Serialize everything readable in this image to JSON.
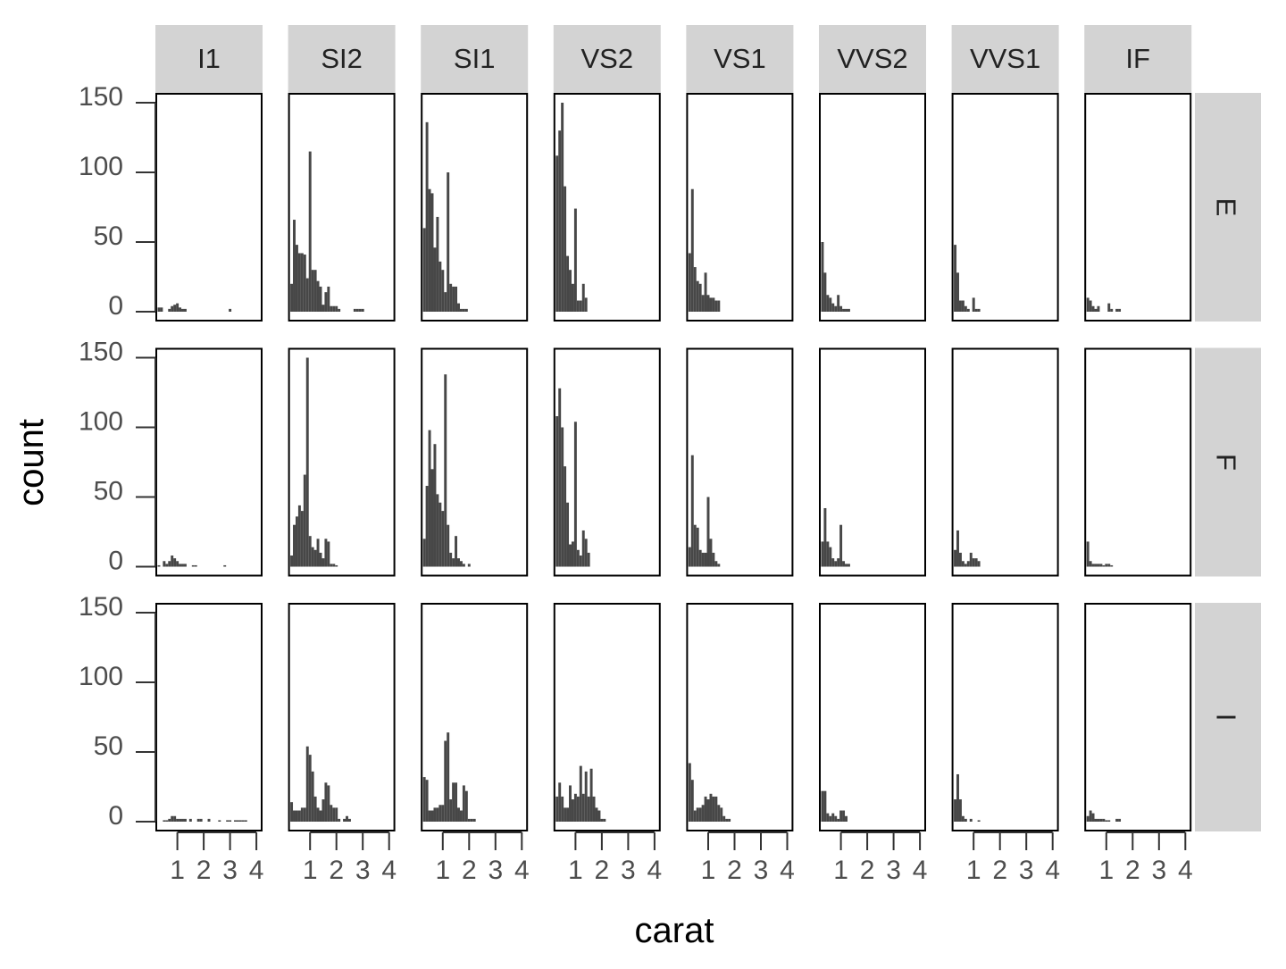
{
  "chart_data": {
    "type": "bar",
    "kind": "faceted-histogram",
    "xlabel": "carat",
    "ylabel": "count",
    "ylim": [
      0,
      150
    ],
    "y_ticks": [
      0,
      50,
      100,
      150
    ],
    "x_range": [
      0.2,
      4.2
    ],
    "x_ticks": [
      1,
      2,
      3,
      4
    ],
    "bin_width": 0.1,
    "grid": false,
    "bar_color": "#474747",
    "strip_color": "#d3d3d3",
    "columns": [
      "I1",
      "SI2",
      "SI1",
      "VS2",
      "VS1",
      "VVS2",
      "VVS1",
      "IF"
    ],
    "rows": [
      "E",
      "F",
      "I"
    ],
    "panels": [
      {
        "row": "E",
        "col": "I1",
        "x0": 0.25,
        "counts": [
          3,
          3,
          0,
          0,
          2,
          4,
          5,
          6,
          3,
          2,
          2,
          0,
          0,
          0,
          0,
          0,
          0,
          0,
          0,
          0,
          0,
          0,
          0,
          0,
          0,
          0,
          0,
          2
        ]
      },
      {
        "row": "E",
        "col": "SI2",
        "x0": 0.25,
        "counts": [
          20,
          66,
          48,
          42,
          42,
          41,
          24,
          115,
          30,
          30,
          22,
          18,
          5,
          14,
          18,
          4,
          4,
          4,
          2,
          0,
          0,
          0,
          0,
          0,
          2,
          2,
          2,
          2
        ]
      },
      {
        "row": "E",
        "col": "SI1",
        "x0": 0.25,
        "counts": [
          60,
          136,
          88,
          85,
          46,
          68,
          36,
          30,
          14,
          100,
          20,
          18,
          18,
          6,
          2,
          2,
          2
        ]
      },
      {
        "row": "E",
        "col": "VS2",
        "x0": 0.25,
        "counts": [
          112,
          130,
          150,
          90,
          40,
          30,
          20,
          74,
          8,
          8,
          20,
          10
        ]
      },
      {
        "row": "E",
        "col": "VS1",
        "x0": 0.25,
        "counts": [
          42,
          88,
          32,
          22,
          20,
          12,
          28,
          12,
          10,
          10,
          8,
          8
        ]
      },
      {
        "row": "E",
        "col": "VVS2",
        "x0": 0.25,
        "counts": [
          50,
          28,
          12,
          10,
          6,
          4,
          12,
          4,
          2,
          2,
          2
        ]
      },
      {
        "row": "E",
        "col": "VVS1",
        "x0": 0.25,
        "counts": [
          48,
          28,
          8,
          8,
          4,
          2,
          0,
          10,
          2,
          2
        ]
      },
      {
        "row": "E",
        "col": "IF",
        "x0": 0.25,
        "counts": [
          10,
          8,
          4,
          2,
          4,
          0,
          0,
          0,
          6,
          2,
          0,
          2,
          2
        ]
      },
      {
        "row": "F",
        "col": "I1",
        "x0": 0.25,
        "counts": [
          1,
          0,
          4,
          2,
          4,
          8,
          6,
          4,
          2,
          2,
          2,
          0,
          0,
          1,
          1,
          0,
          0,
          0,
          0,
          0,
          0,
          0,
          0,
          0,
          0,
          1
        ]
      },
      {
        "row": "F",
        "col": "SI2",
        "x0": 0.25,
        "counts": [
          8,
          30,
          36,
          44,
          40,
          66,
          150,
          22,
          14,
          12,
          20,
          10,
          6,
          20,
          18,
          2,
          2,
          1
        ]
      },
      {
        "row": "F",
        "col": "SI1",
        "x0": 0.25,
        "counts": [
          20,
          58,
          98,
          70,
          88,
          52,
          46,
          40,
          138,
          30,
          10,
          6,
          22,
          6,
          4,
          2,
          0,
          2
        ]
      },
      {
        "row": "F",
        "col": "VS2",
        "x0": 0.25,
        "counts": [
          108,
          128,
          100,
          72,
          46,
          16,
          18,
          104,
          12,
          8,
          26,
          20,
          10
        ]
      },
      {
        "row": "F",
        "col": "VS1",
        "x0": 0.25,
        "counts": [
          14,
          80,
          30,
          28,
          12,
          10,
          10,
          50,
          20,
          10,
          4,
          2
        ]
      },
      {
        "row": "F",
        "col": "VVS2",
        "x0": 0.25,
        "counts": [
          18,
          42,
          18,
          14,
          6,
          4,
          6,
          30,
          4,
          2,
          2
        ]
      },
      {
        "row": "F",
        "col": "VVS1",
        "x0": 0.25,
        "counts": [
          12,
          26,
          10,
          4,
          2,
          4,
          10,
          6,
          6,
          4
        ]
      },
      {
        "row": "F",
        "col": "IF",
        "x0": 0.25,
        "counts": [
          18,
          4,
          2,
          2,
          2,
          2,
          1,
          2,
          2,
          1
        ]
      },
      {
        "row": "I",
        "col": "I1",
        "x0": 0.45,
        "counts": [
          1,
          1,
          2,
          4,
          4,
          2,
          2,
          2,
          2,
          0,
          2,
          0,
          0,
          2,
          2,
          0,
          0,
          2,
          0,
          0,
          0,
          1,
          0,
          0,
          1,
          1,
          0,
          1,
          1,
          1,
          1,
          1
        ]
      },
      {
        "row": "I",
        "col": "SI2",
        "x0": 0.25,
        "counts": [
          14,
          8,
          8,
          8,
          10,
          10,
          54,
          48,
          36,
          18,
          10,
          8,
          16,
          28,
          26,
          12,
          10,
          10,
          2,
          0,
          2,
          4,
          2
        ]
      },
      {
        "row": "I",
        "col": "SI1",
        "x0": 0.25,
        "counts": [
          32,
          30,
          8,
          8,
          10,
          10,
          12,
          12,
          58,
          64,
          16,
          28,
          28,
          10,
          8,
          26,
          22,
          2,
          2,
          2
        ]
      },
      {
        "row": "I",
        "col": "VS2",
        "x0": 0.25,
        "counts": [
          18,
          28,
          18,
          10,
          10,
          26,
          16,
          20,
          18,
          40,
          20,
          36,
          18,
          38,
          18,
          10,
          8,
          2,
          2
        ]
      },
      {
        "row": "I",
        "col": "VS1",
        "x0": 0.25,
        "counts": [
          42,
          30,
          8,
          10,
          10,
          12,
          18,
          16,
          20,
          18,
          18,
          12,
          10,
          4,
          2,
          2
        ]
      },
      {
        "row": "I",
        "col": "VVS2",
        "x0": 0.25,
        "counts": [
          22,
          22,
          6,
          4,
          6,
          4,
          2,
          8,
          8,
          4
        ]
      },
      {
        "row": "I",
        "col": "VVS1",
        "x0": 0.25,
        "counts": [
          16,
          34,
          16,
          4,
          2,
          0,
          2,
          0,
          0,
          1
        ]
      },
      {
        "row": "I",
        "col": "IF",
        "x0": 0.25,
        "counts": [
          4,
          8,
          6,
          2,
          2,
          2,
          2,
          1,
          1,
          0,
          0,
          2,
          2
        ]
      }
    ]
  }
}
